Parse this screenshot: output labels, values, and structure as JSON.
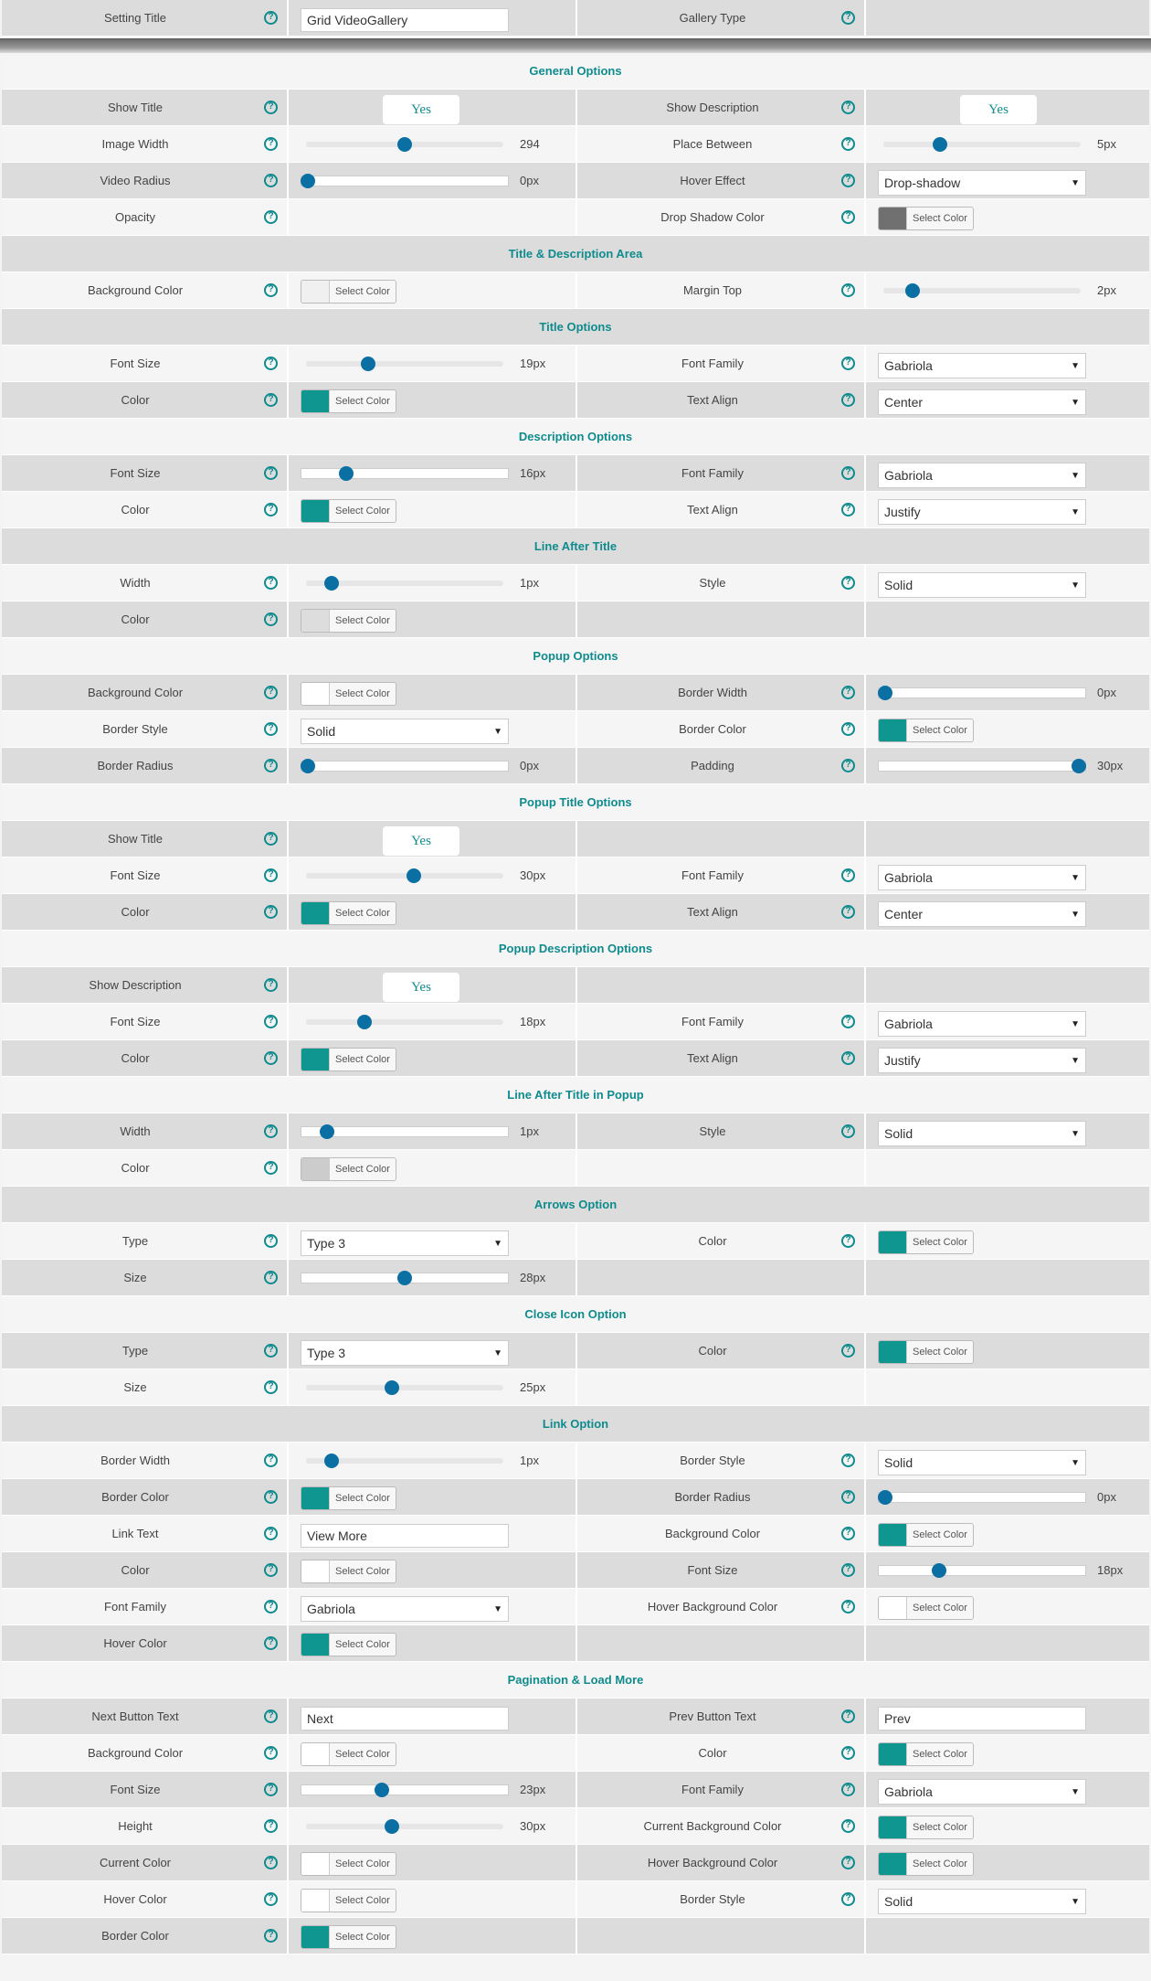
{
  "help_glyph": "?",
  "select_color_label": "Select Color",
  "setting": {
    "title_label": "Setting Title",
    "title_value": "Grid VideoGallery",
    "gallery_type_label": "Gallery Type"
  },
  "rows": [
    {
      "type": "header",
      "title": "General Options",
      "shade": "l"
    },
    {
      "shade": "d",
      "left": {
        "label": "Show Title",
        "control": {
          "type": "yes",
          "text": "Yes"
        }
      },
      "right": {
        "label": "Show Description",
        "control": {
          "type": "yes",
          "text": "Yes"
        }
      }
    },
    {
      "shade": "l",
      "left": {
        "label": "Image Width",
        "control": {
          "type": "slider",
          "value": 294,
          "pos": 0.5,
          "text": "294"
        }
      },
      "right": {
        "label": "Place Between",
        "control": {
          "type": "slider",
          "value": 5,
          "pos": 0.27,
          "text": "5px"
        }
      }
    },
    {
      "shade": "d",
      "left": {
        "label": "Video Radius",
        "control": {
          "type": "slider",
          "value": 0,
          "pos": 0.0,
          "text": "0px",
          "boxed": true
        }
      },
      "right": {
        "label": "Hover Effect",
        "control": {
          "type": "select",
          "text": "Drop-shadow"
        }
      }
    },
    {
      "shade": "l",
      "left": {
        "label": "Opacity"
      },
      "right": {
        "label": "Drop Shadow Color",
        "control": {
          "type": "color",
          "color": "#707070"
        }
      }
    },
    {
      "type": "header",
      "title": "Title & Description Area",
      "shade": "d"
    },
    {
      "shade": "l",
      "left": {
        "label": "Background Color",
        "control": {
          "type": "color",
          "color": "#f0f0f0"
        }
      },
      "right": {
        "label": "Margin Top",
        "control": {
          "type": "slider",
          "value": 2,
          "pos": 0.12,
          "text": "2px"
        }
      }
    },
    {
      "type": "header",
      "title": "Title Options",
      "shade": "d"
    },
    {
      "shade": "l",
      "left": {
        "label": "Font Size",
        "control": {
          "type": "slider",
          "value": 19,
          "pos": 0.3,
          "text": "19px"
        }
      },
      "right": {
        "label": "Font Family",
        "control": {
          "type": "select",
          "text": "Gabriola"
        }
      }
    },
    {
      "shade": "d",
      "left": {
        "label": "Color",
        "control": {
          "type": "color",
          "color": "#0f9690"
        }
      },
      "right": {
        "label": "Text Align",
        "control": {
          "type": "select",
          "text": "Center"
        }
      }
    },
    {
      "type": "header",
      "title": "Description Options",
      "shade": "l"
    },
    {
      "shade": "d",
      "left": {
        "label": "Font Size",
        "control": {
          "type": "slider",
          "value": 16,
          "pos": 0.2,
          "text": "16px",
          "boxed": true
        }
      },
      "right": {
        "label": "Font Family",
        "control": {
          "type": "select",
          "text": "Gabriola"
        }
      }
    },
    {
      "shade": "l",
      "left": {
        "label": "Color",
        "control": {
          "type": "color",
          "color": "#0f9690"
        }
      },
      "right": {
        "label": "Text Align",
        "control": {
          "type": "select",
          "text": "Justify"
        }
      }
    },
    {
      "type": "header",
      "title": "Line After Title",
      "shade": "d"
    },
    {
      "shade": "l",
      "left": {
        "label": "Width",
        "control": {
          "type": "slider",
          "value": 1,
          "pos": 0.1,
          "text": "1px"
        }
      },
      "right": {
        "label": "Style",
        "control": {
          "type": "select",
          "text": "Solid"
        }
      }
    },
    {
      "shade": "d",
      "left": {
        "label": "Color",
        "control": {
          "type": "color",
          "color": "#dddddd"
        }
      },
      "right": {}
    },
    {
      "type": "header",
      "title": "Popup Options",
      "shade": "l"
    },
    {
      "shade": "d",
      "left": {
        "label": "Background Color",
        "control": {
          "type": "color",
          "color": "#ffffff"
        }
      },
      "right": {
        "label": "Border Width",
        "control": {
          "type": "slider",
          "value": 0,
          "pos": 0.0,
          "text": "0px",
          "boxed": true
        }
      }
    },
    {
      "shade": "l",
      "left": {
        "label": "Border Style",
        "control": {
          "type": "select",
          "text": "Solid"
        }
      },
      "right": {
        "label": "Border Color",
        "control": {
          "type": "color",
          "color": "#0f9690"
        }
      }
    },
    {
      "shade": "d",
      "left": {
        "label": "Border Radius",
        "control": {
          "type": "slider",
          "value": 0,
          "pos": 0.0,
          "text": "0px",
          "boxed": true
        }
      },
      "right": {
        "label": "Padding",
        "control": {
          "type": "slider",
          "value": 30,
          "pos": 1.0,
          "text": "30px",
          "boxed": true
        }
      }
    },
    {
      "type": "header",
      "title": "Popup Title Options",
      "shade": "l"
    },
    {
      "shade": "d",
      "left": {
        "label": "Show Title",
        "control": {
          "type": "yes",
          "text": "Yes"
        }
      },
      "right": {}
    },
    {
      "shade": "l",
      "left": {
        "label": "Font Size",
        "control": {
          "type": "slider",
          "value": 30,
          "pos": 0.55,
          "text": "30px"
        }
      },
      "right": {
        "label": "Font Family",
        "control": {
          "type": "select",
          "text": "Gabriola"
        }
      }
    },
    {
      "shade": "d",
      "left": {
        "label": "Color",
        "control": {
          "type": "color",
          "color": "#0f9690"
        }
      },
      "right": {
        "label": "Text Align",
        "control": {
          "type": "select",
          "text": "Center"
        }
      }
    },
    {
      "type": "header",
      "title": "Popup Description Options",
      "shade": "l"
    },
    {
      "shade": "d",
      "left": {
        "label": "Show Description",
        "control": {
          "type": "yes",
          "text": "Yes"
        }
      },
      "right": {}
    },
    {
      "shade": "l",
      "left": {
        "label": "Font Size",
        "control": {
          "type": "slider",
          "value": 18,
          "pos": 0.28,
          "text": "18px"
        }
      },
      "right": {
        "label": "Font Family",
        "control": {
          "type": "select",
          "text": "Gabriola"
        }
      }
    },
    {
      "shade": "d",
      "left": {
        "label": "Color",
        "control": {
          "type": "color",
          "color": "#0f9690"
        }
      },
      "right": {
        "label": "Text Align",
        "control": {
          "type": "select",
          "text": "Justify"
        }
      }
    },
    {
      "type": "header",
      "title": "Line After Title in Popup",
      "shade": "l"
    },
    {
      "shade": "d",
      "left": {
        "label": "Width",
        "control": {
          "type": "slider",
          "value": 1,
          "pos": 0.1,
          "text": "1px",
          "boxed": true
        }
      },
      "right": {
        "label": "Style",
        "control": {
          "type": "select",
          "text": "Solid"
        }
      }
    },
    {
      "shade": "l",
      "left": {
        "label": "Color",
        "control": {
          "type": "color",
          "color": "#cccccc"
        }
      },
      "right": {}
    },
    {
      "type": "header",
      "title": "Arrows Option",
      "shade": "d"
    },
    {
      "shade": "l",
      "left": {
        "label": "Type",
        "control": {
          "type": "select",
          "text": "Type 3"
        }
      },
      "right": {
        "label": "Color",
        "control": {
          "type": "color",
          "color": "#0f9690"
        }
      }
    },
    {
      "shade": "d",
      "left": {
        "label": "Size",
        "control": {
          "type": "slider",
          "value": 28,
          "pos": 0.5,
          "text": "28px",
          "boxed": true
        }
      },
      "right": {}
    },
    {
      "type": "header",
      "title": "Close Icon Option",
      "shade": "l"
    },
    {
      "shade": "d",
      "left": {
        "label": "Type",
        "control": {
          "type": "select",
          "text": "Type 3"
        }
      },
      "right": {
        "label": "Color",
        "control": {
          "type": "color",
          "color": "#0f9690"
        }
      }
    },
    {
      "shade": "l",
      "left": {
        "label": "Size",
        "control": {
          "type": "slider",
          "value": 25,
          "pos": 0.43,
          "text": "25px"
        }
      },
      "right": {}
    },
    {
      "type": "header",
      "title": "Link Option",
      "shade": "d"
    },
    {
      "shade": "l",
      "left": {
        "label": "Border Width",
        "control": {
          "type": "slider",
          "value": 1,
          "pos": 0.1,
          "text": "1px"
        }
      },
      "right": {
        "label": "Border Style",
        "control": {
          "type": "select",
          "text": "Solid"
        }
      }
    },
    {
      "shade": "d",
      "left": {
        "label": "Border Color",
        "control": {
          "type": "color",
          "color": "#0f9690"
        }
      },
      "right": {
        "label": "Border Radius",
        "control": {
          "type": "slider",
          "value": 0,
          "pos": 0.0,
          "text": "0px",
          "boxed": true
        }
      }
    },
    {
      "shade": "l",
      "left": {
        "label": "Link Text",
        "control": {
          "type": "text",
          "text": "View More"
        }
      },
      "right": {
        "label": "Background Color",
        "control": {
          "type": "color",
          "color": "#0f9690"
        }
      }
    },
    {
      "shade": "d",
      "left": {
        "label": "Color",
        "control": {
          "type": "color",
          "color": "#ffffff"
        }
      },
      "right": {
        "label": "Font Size",
        "control": {
          "type": "slider",
          "value": 18,
          "pos": 0.28,
          "text": "18px",
          "boxed": true
        }
      }
    },
    {
      "shade": "l",
      "left": {
        "label": "Font Family",
        "control": {
          "type": "select",
          "text": "Gabriola"
        }
      },
      "right": {
        "label": "Hover Background Color",
        "control": {
          "type": "color",
          "color": "#ffffff"
        }
      }
    },
    {
      "shade": "d",
      "left": {
        "label": "Hover Color",
        "control": {
          "type": "color",
          "color": "#0f9690"
        }
      },
      "right": {}
    },
    {
      "type": "header",
      "title": "Pagination & Load More",
      "shade": "l"
    },
    {
      "shade": "d",
      "left": {
        "label": "Next Button Text",
        "control": {
          "type": "text",
          "text": "Next"
        }
      },
      "right": {
        "label": "Prev Button Text",
        "control": {
          "type": "text",
          "text": "Prev"
        }
      }
    },
    {
      "shade": "l",
      "left": {
        "label": "Background Color",
        "control": {
          "type": "color",
          "color": "#ffffff"
        }
      },
      "right": {
        "label": "Color",
        "control": {
          "type": "color",
          "color": "#0f9690"
        }
      }
    },
    {
      "shade": "d",
      "left": {
        "label": "Font Size",
        "control": {
          "type": "slider",
          "value": 23,
          "pos": 0.38,
          "text": "23px",
          "boxed": true
        }
      },
      "right": {
        "label": "Font Family",
        "control": {
          "type": "select",
          "text": "Gabriola"
        }
      }
    },
    {
      "shade": "l",
      "left": {
        "label": "Height",
        "control": {
          "type": "slider",
          "value": 30,
          "pos": 0.43,
          "text": "30px"
        }
      },
      "right": {
        "label": "Current Background Color",
        "control": {
          "type": "color",
          "color": "#0f9690"
        }
      }
    },
    {
      "shade": "d",
      "left": {
        "label": "Current Color",
        "control": {
          "type": "color",
          "color": "#ffffff"
        }
      },
      "right": {
        "label": "Hover Background Color",
        "control": {
          "type": "color",
          "color": "#0f9690"
        }
      }
    },
    {
      "shade": "l",
      "left": {
        "label": "Hover Color",
        "control": {
          "type": "color",
          "color": "#ffffff"
        }
      },
      "right": {
        "label": "Border Style",
        "control": {
          "type": "select",
          "text": "Solid"
        }
      }
    },
    {
      "shade": "d",
      "left": {
        "label": "Border Color",
        "control": {
          "type": "color",
          "color": "#0f9690"
        }
      },
      "right": {}
    }
  ]
}
